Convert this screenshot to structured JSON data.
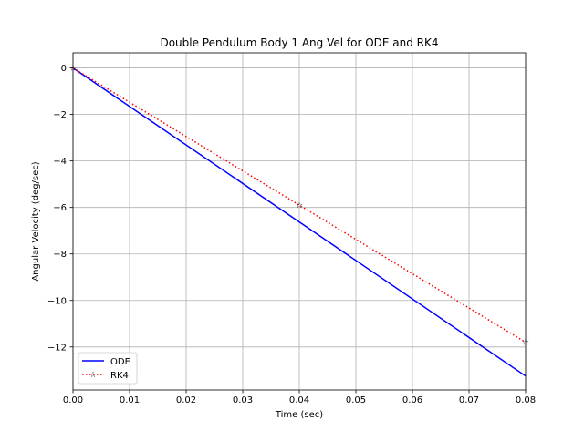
{
  "chart_data": {
    "type": "line",
    "title": "Double Pendulum Body 1 Ang Vel for ODE and RK4",
    "xlabel": "Time (sec)",
    "ylabel": "Angular Velocity (deg/sec)",
    "xlim": [
      0.0,
      0.08
    ],
    "ylim": [
      -13.85,
      0.65
    ],
    "x_ticks": [
      0.0,
      0.01,
      0.02,
      0.03,
      0.04,
      0.05,
      0.06,
      0.07,
      0.08
    ],
    "x_tick_labels": [
      "0.00",
      "0.01",
      "0.02",
      "0.03",
      "0.04",
      "0.05",
      "0.06",
      "0.07",
      "0.08"
    ],
    "y_ticks": [
      0,
      -2,
      -4,
      -6,
      -8,
      -10,
      -12
    ],
    "y_tick_labels": [
      "0",
      "−2",
      "−4",
      "−6",
      "−8",
      "−10",
      "−12"
    ],
    "grid": true,
    "legend_position": "lower-left",
    "series": [
      {
        "name": "ODE",
        "color": "#0000ff",
        "line_style": "solid",
        "marker": "none",
        "points": [
          [
            0.0,
            0.0
          ],
          [
            0.08,
            -13.25
          ]
        ]
      },
      {
        "name": "RK4",
        "color": "#ff0000",
        "line_style": "dotted",
        "marker": "star",
        "points": [
          [
            0.0,
            0.0
          ],
          [
            0.04,
            -5.9
          ],
          [
            0.08,
            -11.8
          ]
        ]
      }
    ]
  }
}
